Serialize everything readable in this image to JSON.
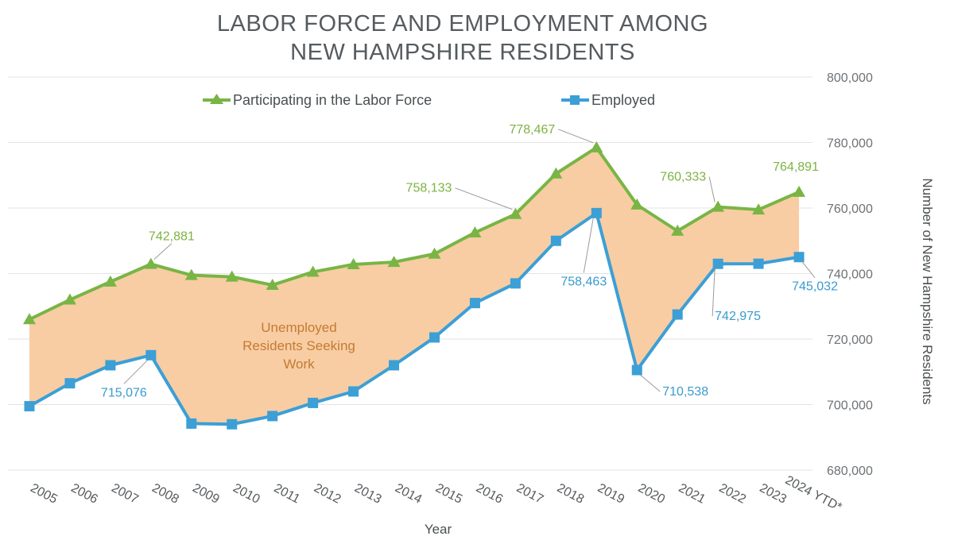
{
  "colors": {
    "participating": "#78b545",
    "employed": "#3c9fd6",
    "gap_fill": "#f8cda3",
    "grid": "#e3e3e3",
    "title": "#555b5f"
  },
  "chart_data": {
    "type": "line",
    "title_line1": "LABOR FORCE AND EMPLOYMENT AMONG",
    "title_line2": "NEW HAMPSHIRE RESIDENTS",
    "xlabel": "Year",
    "ylabel": "Number of New Hampshire Residents",
    "ylim": [
      680000,
      800000
    ],
    "yticks": [
      680000,
      700000,
      720000,
      740000,
      760000,
      780000,
      800000
    ],
    "ytick_labels": [
      "680,000",
      "700,000",
      "720,000",
      "740,000",
      "760,000",
      "780,000",
      "800,000"
    ],
    "y_axis_side": "right",
    "grid": true,
    "legend_position": "top-center",
    "categories": [
      "2005",
      "2006",
      "2007",
      "2008",
      "2009",
      "2010",
      "2011",
      "2012",
      "2013",
      "2014",
      "2015",
      "2016",
      "2017",
      "2018",
      "2019",
      "2020",
      "2021",
      "2022",
      "2023",
      "2024 YTD*"
    ],
    "series": [
      {
        "name": "Participating in the Labor Force",
        "marker": "triangle",
        "values": [
          726000,
          732000,
          737500,
          742881,
          739500,
          739000,
          736500,
          740500,
          742800,
          743500,
          746000,
          752500,
          758133,
          770500,
          778467,
          761000,
          753000,
          760333,
          759500,
          764891
        ]
      },
      {
        "name": "Employed",
        "marker": "square",
        "values": [
          699500,
          706500,
          712000,
          715076,
          694200,
          694000,
          696500,
          700500,
          704000,
          712000,
          720500,
          731000,
          737000,
          750000,
          758463,
          710538,
          727500,
          742975,
          743000,
          745032
        ]
      }
    ],
    "shaded_region_label": [
      "Unemployed",
      "Residents Seeking",
      "Work"
    ],
    "annotations": [
      {
        "series": 0,
        "index": 3,
        "text": "742,881"
      },
      {
        "series": 0,
        "index": 12,
        "text": "758,133"
      },
      {
        "series": 0,
        "index": 14,
        "text": "778,467"
      },
      {
        "series": 0,
        "index": 17,
        "text": "760,333"
      },
      {
        "series": 0,
        "index": 19,
        "text": "764,891"
      },
      {
        "series": 1,
        "index": 3,
        "text": "715,076"
      },
      {
        "series": 1,
        "index": 14,
        "text": "758,463"
      },
      {
        "series": 1,
        "index": 15,
        "text": "710,538"
      },
      {
        "series": 1,
        "index": 17,
        "text": "742,975"
      },
      {
        "series": 1,
        "index": 19,
        "text": "745,032"
      }
    ]
  }
}
